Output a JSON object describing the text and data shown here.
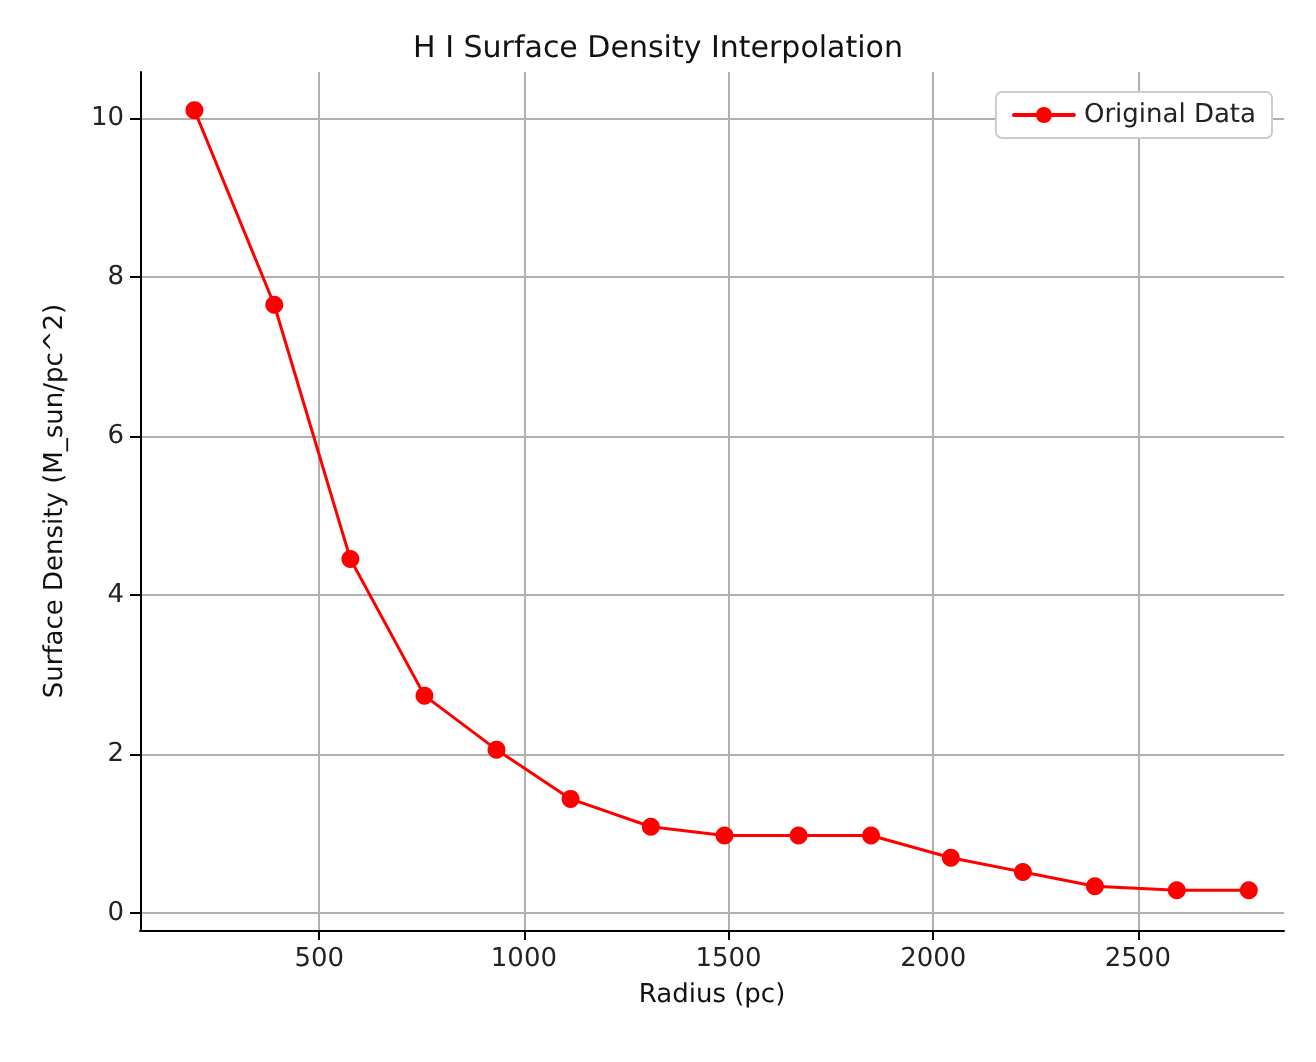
{
  "chart_data": {
    "type": "line",
    "title": "H I Surface Density Interpolation",
    "xlabel": "Radius (pc)",
    "ylabel": "Surface Density (M_sun/pc^2)",
    "x": [
      195,
      390,
      576,
      757,
      933,
      1114,
      1310,
      1490,
      1671,
      1848,
      2043,
      2219,
      2395,
      2595,
      2771
    ],
    "series": [
      {
        "name": "Original Data",
        "color": "#ff0000",
        "values": [
          10.1,
          7.65,
          4.45,
          2.73,
          2.05,
          1.43,
          1.08,
          0.97,
          0.97,
          0.97,
          0.69,
          0.51,
          0.33,
          0.28,
          0.28
        ]
      }
    ],
    "xlim": [
      62,
      2857
    ],
    "xticks": [
      500,
      1000,
      1500,
      2000,
      2500
    ],
    "ylim": [
      -0.22,
      10.58
    ],
    "yticks": [
      0,
      2,
      4,
      6,
      8,
      10
    ],
    "grid": true,
    "legend": "top right",
    "marker": "circle",
    "line_style": "solid"
  }
}
